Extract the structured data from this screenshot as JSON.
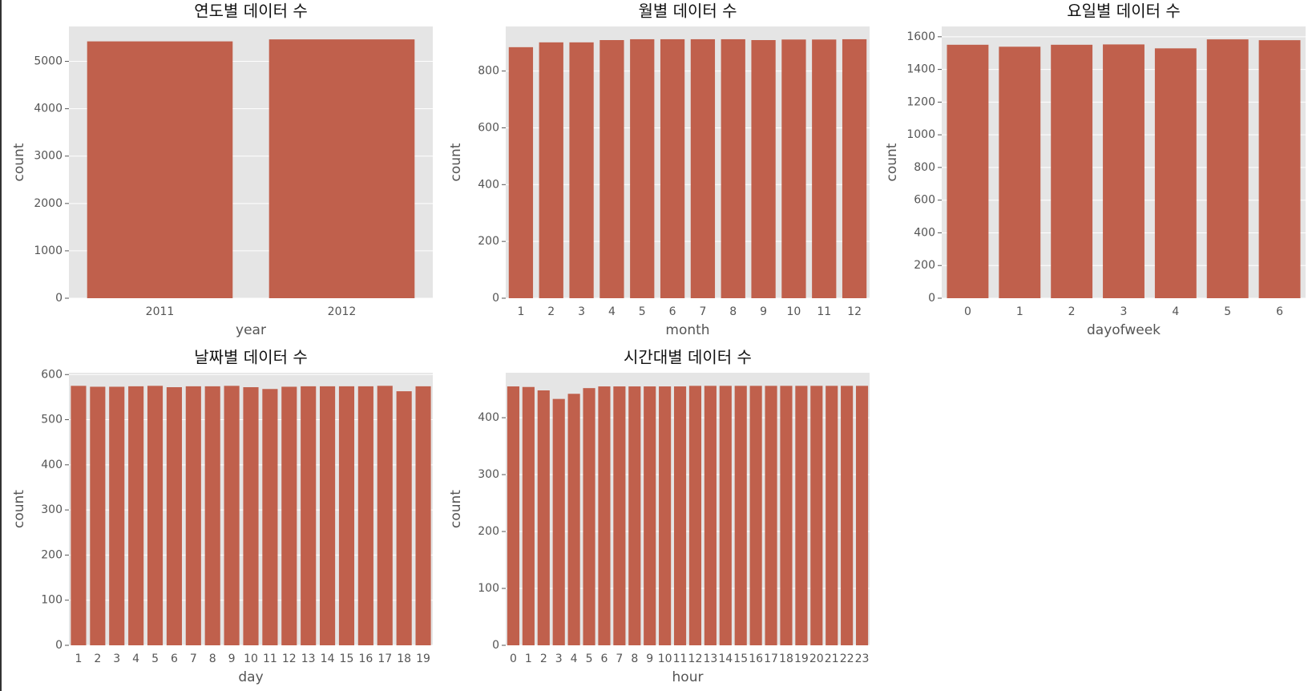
{
  "chart_data": [
    {
      "type": "bar",
      "title": "연도별 데이터 수",
      "xlabel": "year",
      "ylabel": "count",
      "color": "#c0604c",
      "categories": [
        "2011",
        "2012"
      ],
      "values": [
        5422,
        5464
      ],
      "ylim": [
        0,
        5737
      ],
      "yticks": [
        0,
        1000,
        2000,
        3000,
        4000,
        5000
      ],
      "grid": true
    },
    {
      "type": "bar",
      "title": "월별 데이터 수",
      "xlabel": "month",
      "ylabel": "count",
      "color": "#c0604c",
      "categories": [
        "1",
        "2",
        "3",
        "4",
        "5",
        "6",
        "7",
        "8",
        "9",
        "10",
        "11",
        "12"
      ],
      "values": [
        884,
        901,
        901,
        909,
        912,
        912,
        912,
        912,
        909,
        911,
        911,
        912
      ],
      "ylim": [
        0,
        957
      ],
      "yticks": [
        0,
        200,
        400,
        600,
        800
      ],
      "grid": true
    },
    {
      "type": "bar",
      "title": "요일별 데이터 수",
      "xlabel": "dayofweek",
      "ylabel": "count",
      "color": "#c0604c",
      "categories": [
        "0",
        "1",
        "2",
        "3",
        "4",
        "5",
        "6"
      ],
      "values": [
        1551,
        1539,
        1551,
        1553,
        1529,
        1584,
        1579
      ],
      "ylim": [
        0,
        1663
      ],
      "yticks": [
        0,
        200,
        400,
        600,
        800,
        1000,
        1200,
        1400,
        1600
      ],
      "grid": true
    },
    {
      "type": "bar",
      "title": "날짜별 데이터 수",
      "xlabel": "day",
      "ylabel": "count",
      "color": "#c0604c",
      "categories": [
        "1",
        "2",
        "3",
        "4",
        "5",
        "6",
        "7",
        "8",
        "9",
        "10",
        "11",
        "12",
        "13",
        "14",
        "15",
        "16",
        "17",
        "18",
        "19"
      ],
      "values": [
        575,
        573,
        573,
        574,
        575,
        572,
        574,
        574,
        575,
        572,
        568,
        573,
        574,
        574,
        574,
        574,
        575,
        563,
        574
      ],
      "ylim": [
        0,
        604
      ],
      "yticks": [
        0,
        100,
        200,
        300,
        400,
        500,
        600
      ],
      "grid": true
    },
    {
      "type": "bar",
      "title": "시간대별 데이터 수",
      "xlabel": "hour",
      "ylabel": "count",
      "color": "#c0604c",
      "categories": [
        "0",
        "1",
        "2",
        "3",
        "4",
        "5",
        "6",
        "7",
        "8",
        "9",
        "10",
        "11",
        "12",
        "13",
        "14",
        "15",
        "16",
        "17",
        "18",
        "19",
        "20",
        "21",
        "22",
        "23"
      ],
      "values": [
        455,
        454,
        448,
        433,
        442,
        452,
        455,
        455,
        455,
        455,
        455,
        455,
        456,
        456,
        456,
        456,
        456,
        456,
        456,
        456,
        456,
        456,
        456,
        456
      ],
      "ylim": [
        0,
        479
      ],
      "yticks": [
        0,
        100,
        200,
        300,
        400
      ],
      "grid": true
    }
  ]
}
